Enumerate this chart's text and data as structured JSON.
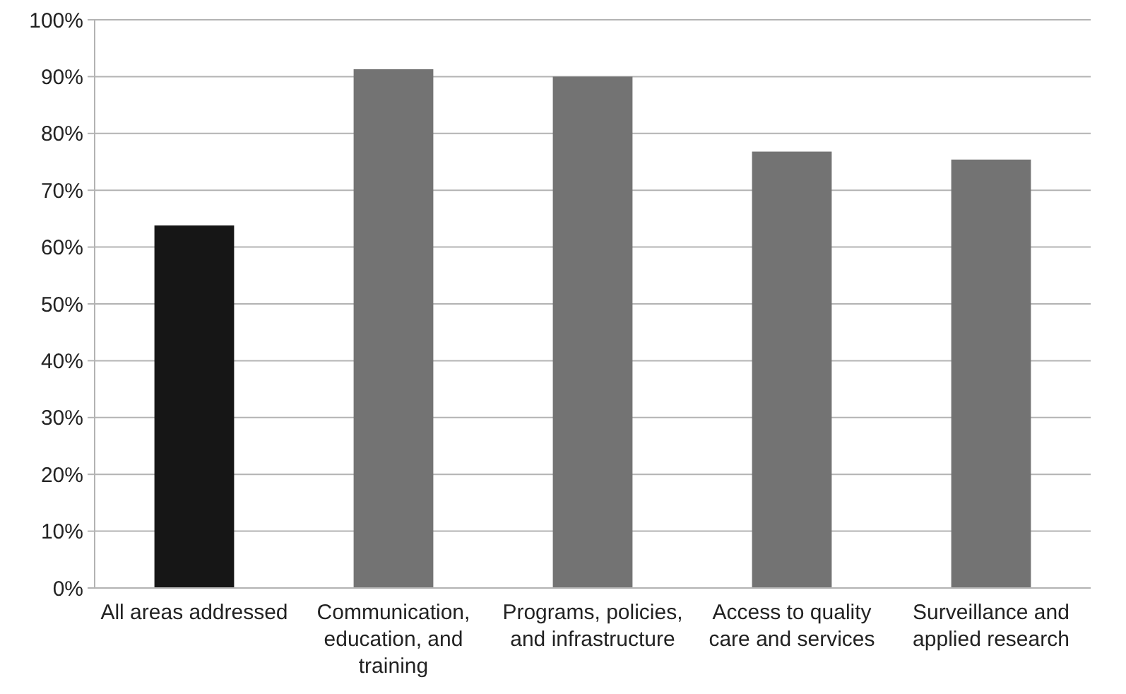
{
  "chart_data": {
    "type": "bar",
    "categories": [
      "All areas addressed",
      "Communication, education, and training",
      "Programs, policies, and infrastructure",
      "Access to quality care and services",
      "Surveillance and applied research"
    ],
    "values": [
      63.8,
      91.3,
      90,
      76.8,
      75.4
    ],
    "colors": [
      "#161616",
      "#737373",
      "#737373",
      "#737373",
      "#737373"
    ],
    "ylim": [
      0,
      100
    ],
    "yticks": [
      {
        "value": 0,
        "label": "0%"
      },
      {
        "value": 10,
        "label": "10%"
      },
      {
        "value": 20,
        "label": "20%"
      },
      {
        "value": 30,
        "label": "30%"
      },
      {
        "value": 40,
        "label": "40%"
      },
      {
        "value": 50,
        "label": "50%"
      },
      {
        "value": 60,
        "label": "60%"
      },
      {
        "value": 70,
        "label": "70%"
      },
      {
        "value": 80,
        "label": "80%"
      },
      {
        "value": 90,
        "label": "90%"
      },
      {
        "value": 100,
        "label": "100%"
      }
    ],
    "grid": "y"
  }
}
